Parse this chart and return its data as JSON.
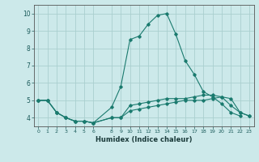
{
  "xlabel": "Humidex (Indice chaleur)",
  "background_color": "#cce9ea",
  "grid_color": "#aacfcf",
  "line_color": "#1a7a6e",
  "x_hours": [
    0,
    1,
    2,
    3,
    4,
    5,
    6,
    8,
    9,
    10,
    11,
    12,
    13,
    14,
    15,
    16,
    17,
    18,
    19,
    20,
    21,
    22,
    23
  ],
  "series1": [
    5.0,
    5.0,
    4.3,
    4.0,
    3.8,
    3.8,
    3.7,
    4.6,
    5.8,
    8.5,
    8.7,
    9.4,
    9.9,
    10.0,
    8.8,
    7.3,
    6.5,
    5.5,
    5.2,
    4.8,
    4.3,
    4.1,
    null
  ],
  "series2": [
    5.0,
    5.0,
    4.3,
    4.0,
    3.8,
    3.8,
    3.7,
    4.0,
    4.0,
    4.7,
    4.8,
    4.9,
    5.0,
    5.1,
    5.1,
    5.1,
    5.2,
    5.3,
    5.3,
    5.2,
    5.1,
    4.3,
    4.1
  ],
  "series3": [
    5.0,
    5.0,
    4.3,
    4.0,
    3.8,
    3.8,
    3.7,
    4.0,
    4.0,
    4.4,
    4.5,
    4.6,
    4.7,
    4.8,
    4.9,
    5.0,
    5.0,
    5.0,
    5.1,
    5.2,
    4.7,
    4.3,
    4.1
  ],
  "ylim": [
    3.5,
    10.5
  ],
  "xlim": [
    -0.5,
    23.5
  ],
  "yticks": [
    4,
    5,
    6,
    7,
    8,
    9,
    10
  ],
  "xticks": [
    0,
    1,
    2,
    3,
    4,
    5,
    6,
    8,
    9,
    10,
    11,
    12,
    13,
    14,
    15,
    16,
    17,
    18,
    19,
    20,
    21,
    22,
    23
  ]
}
